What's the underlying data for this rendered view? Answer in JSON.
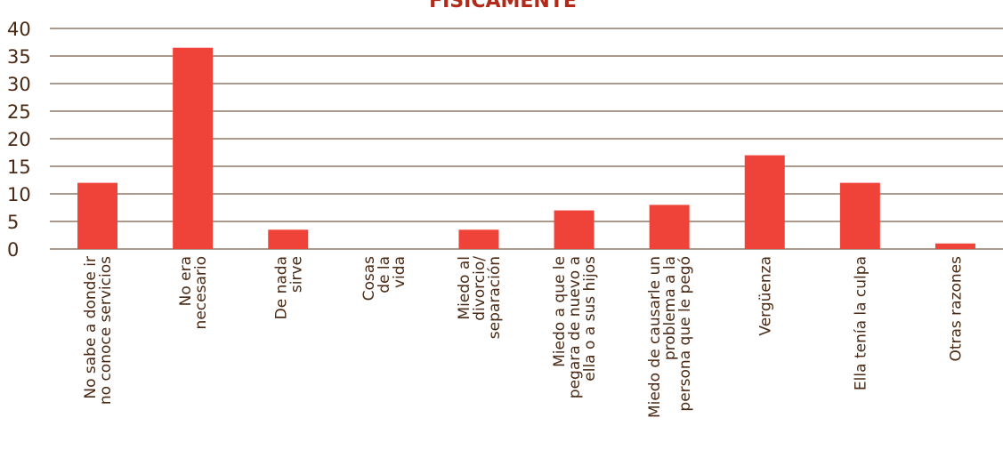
{
  "chart_data": {
    "type": "bar",
    "title": "FÍSICAMENTE",
    "xlabel": "",
    "ylabel": "",
    "ylim": [
      0,
      40
    ],
    "yticks": [
      0,
      5,
      10,
      15,
      20,
      25,
      30,
      35,
      40
    ],
    "grid": true,
    "legend": "none",
    "categories": [
      [
        "No sabe a donde ir",
        "no conoce servicios"
      ],
      [
        "No era",
        "necesario"
      ],
      [
        "De nada",
        "sirve"
      ],
      [
        "Cosas",
        "de la",
        "vida"
      ],
      [
        "Miedo al",
        "divorcio/",
        "separación"
      ],
      [
        "Miedo a que le",
        "pegara de nuevo a",
        "ella o a sus hijos"
      ],
      [
        "Miedo de causarle un",
        "problema a la",
        "persona que le pegó"
      ],
      [
        "Vergüenza"
      ],
      [
        "Ella tenía la culpa"
      ],
      [
        "Otras razones"
      ]
    ],
    "values": [
      12,
      36.5,
      3.5,
      0,
      3.5,
      7,
      8,
      17,
      12,
      1
    ],
    "colors": {
      "bar": "#ef433a",
      "grid": "#5a3418",
      "text": "#4a2a14",
      "title": "#b22a1a"
    }
  }
}
